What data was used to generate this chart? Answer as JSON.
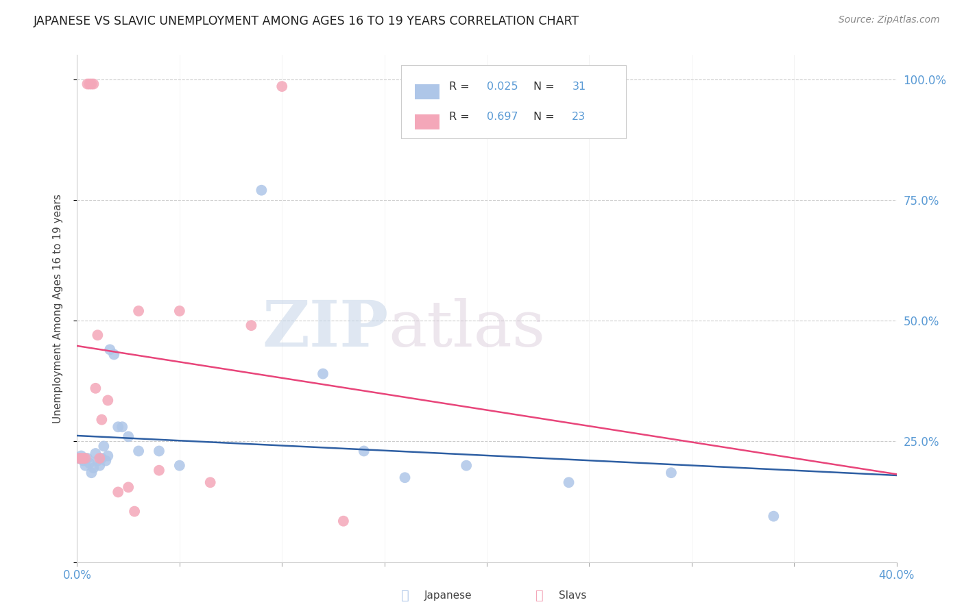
{
  "title": "JAPANESE VS SLAVIC UNEMPLOYMENT AMONG AGES 16 TO 19 YEARS CORRELATION CHART",
  "source": "Source: ZipAtlas.com",
  "ylabel": "Unemployment Among Ages 16 to 19 years",
  "xlim": [
    0.0,
    0.4
  ],
  "ylim": [
    0.0,
    1.05
  ],
  "xticks": [
    0.0,
    0.05,
    0.1,
    0.15,
    0.2,
    0.25,
    0.3,
    0.35,
    0.4
  ],
  "yticks": [
    0.25,
    0.5,
    0.75,
    1.0
  ],
  "japanese_R": 0.025,
  "japanese_N": 31,
  "slavic_R": 0.697,
  "slavic_N": 23,
  "japanese_color": "#aec6e8",
  "slavic_color": "#f4a7b9",
  "japanese_line_color": "#2e5fa3",
  "slavic_line_color": "#e8457a",
  "background_color": "#ffffff",
  "watermark_zip": "ZIP",
  "watermark_atlas": "atlas",
  "japanese_x": [
    0.001,
    0.002,
    0.003,
    0.004,
    0.005,
    0.006,
    0.007,
    0.008,
    0.009,
    0.01,
    0.011,
    0.012,
    0.013,
    0.014,
    0.015,
    0.016,
    0.018,
    0.02,
    0.022,
    0.025,
    0.03,
    0.04,
    0.05,
    0.09,
    0.12,
    0.14,
    0.16,
    0.19,
    0.24,
    0.29,
    0.34
  ],
  "japanese_y": [
    0.215,
    0.22,
    0.21,
    0.2,
    0.215,
    0.205,
    0.185,
    0.195,
    0.225,
    0.21,
    0.2,
    0.215,
    0.24,
    0.21,
    0.22,
    0.44,
    0.43,
    0.28,
    0.28,
    0.26,
    0.23,
    0.23,
    0.2,
    0.77,
    0.39,
    0.23,
    0.175,
    0.2,
    0.165,
    0.185,
    0.095
  ],
  "slavic_x": [
    0.001,
    0.002,
    0.003,
    0.004,
    0.005,
    0.006,
    0.007,
    0.008,
    0.009,
    0.01,
    0.011,
    0.012,
    0.015,
    0.02,
    0.025,
    0.028,
    0.03,
    0.04,
    0.05,
    0.065,
    0.085,
    0.1,
    0.13
  ],
  "slavic_y": [
    0.215,
    0.215,
    0.215,
    0.215,
    0.99,
    0.99,
    0.99,
    0.99,
    0.36,
    0.47,
    0.215,
    0.295,
    0.335,
    0.145,
    0.155,
    0.105,
    0.52,
    0.19,
    0.52,
    0.165,
    0.49,
    0.985,
    0.085
  ]
}
